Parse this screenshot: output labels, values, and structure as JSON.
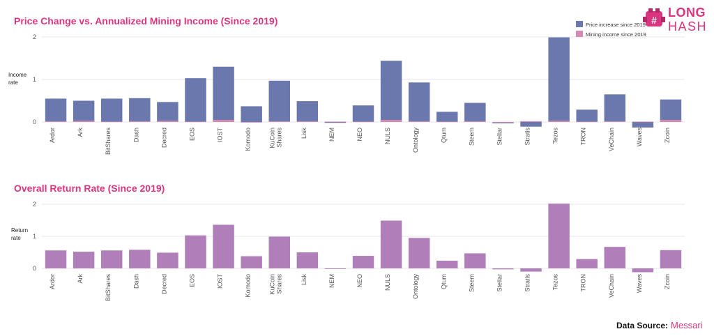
{
  "chart_data": [
    {
      "type": "bar",
      "title": "Price Change vs. Annualized Mining Income (Since 2019)",
      "ylabel": "Income rate",
      "ylim": [
        -0.15,
        2.05
      ],
      "yticks": [
        "0",
        "1",
        "2"
      ],
      "grid": true,
      "legend_position": "top-right",
      "categories": [
        "Ardor",
        "Ark",
        "BitShares",
        "Dash",
        "Decred",
        "EOS",
        "IOST",
        "Komodo",
        "KuCoin Shares",
        "Lisk",
        "NEM",
        "NEO",
        "NULS",
        "Ontology",
        "Qtum",
        "Steem",
        "Stellar",
        "Stratis",
        "Tezos",
        "TRON",
        "VeChain",
        "Waves",
        "Zcoin"
      ],
      "series": [
        {
          "name": "Price increase since 2019",
          "color": "#6b78ad",
          "values": [
            0.55,
            0.5,
            0.55,
            0.56,
            0.47,
            1.03,
            1.3,
            0.37,
            0.97,
            0.49,
            -0.02,
            0.39,
            1.44,
            0.93,
            0.24,
            0.45,
            -0.03,
            -0.11,
            1.99,
            0.29,
            0.65,
            -0.13,
            0.53
          ]
        },
        {
          "name": "Mining income since 2019",
          "color": "#d38bb4",
          "values": [
            0.02,
            0.03,
            0.01,
            0.02,
            0.03,
            0.01,
            0.05,
            0.0,
            0.02,
            0.02,
            0.01,
            0.01,
            0.05,
            0.02,
            0.01,
            0.02,
            0.0,
            0.02,
            0.03,
            0.01,
            0.02,
            0.01,
            0.05
          ]
        }
      ]
    },
    {
      "type": "bar",
      "title": "Overall Return Rate (Since 2019)",
      "ylabel": "Return rate",
      "ylim": [
        -0.15,
        2.1
      ],
      "yticks": [
        "0",
        "1",
        "2"
      ],
      "grid": true,
      "categories": [
        "Ardor",
        "Ark",
        "BitShares",
        "Dash",
        "Decred",
        "EOS",
        "IOST",
        "Komodo",
        "KuCoin Shares",
        "Lisk",
        "NEM",
        "NEO",
        "NULS",
        "Ontology",
        "Qtum",
        "Steem",
        "Stellar",
        "Stratis",
        "Tezos",
        "TRON",
        "VeChain",
        "Waves",
        "Zcoin"
      ],
      "series": [
        {
          "color": "#b07fba",
          "values": [
            0.56,
            0.52,
            0.56,
            0.58,
            0.49,
            1.03,
            1.36,
            0.38,
            0.99,
            0.5,
            -0.02,
            0.39,
            1.49,
            0.95,
            0.24,
            0.47,
            -0.03,
            -0.1,
            2.02,
            0.29,
            0.67,
            -0.12,
            0.57
          ]
        }
      ]
    }
  ],
  "logo": {
    "line1": "LONG",
    "line2": "HASH"
  },
  "source": {
    "label": "Data Source:",
    "name": "Messari"
  },
  "colors": {
    "title": "#d9367f",
    "grid": "#e6e6e6"
  }
}
